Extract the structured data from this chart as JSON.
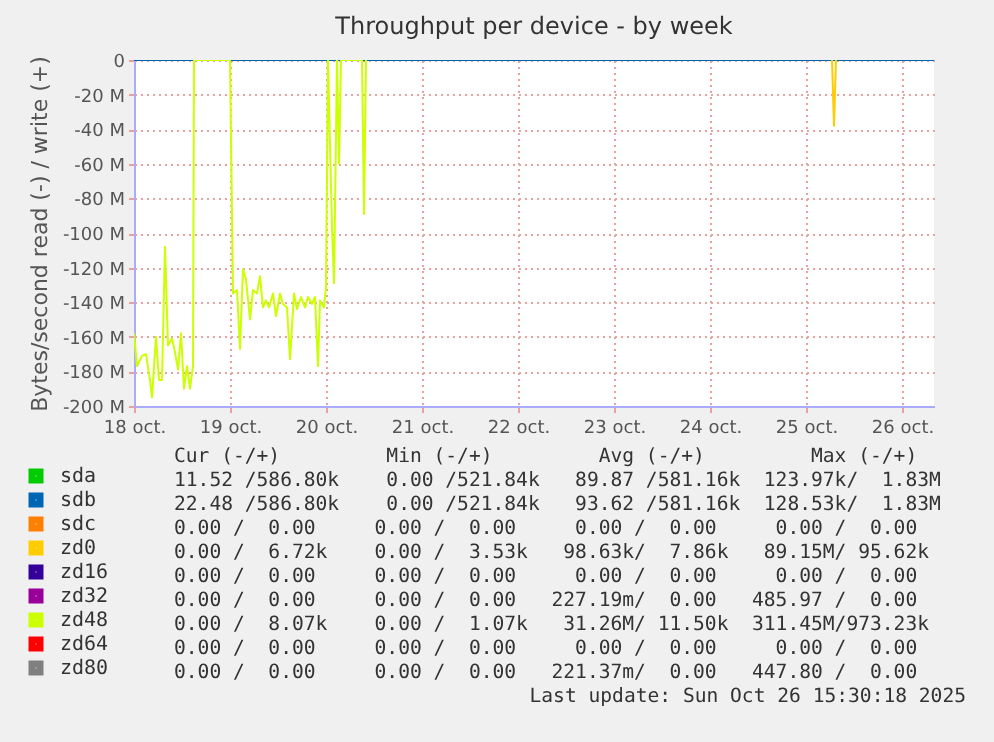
{
  "chart_data": {
    "type": "line",
    "title": "Throughput per device - by week",
    "ylabel": "Bytes/second read (-) / write (+)",
    "xlim": [
      "2025-10-18T00:00",
      "2025-10-26T08:00"
    ],
    "ylim": [
      -200,
      0
    ],
    "xticks": [
      {
        "value": "2025-10-18",
        "label": "18 oct."
      },
      {
        "value": "2025-10-19",
        "label": "19 oct."
      },
      {
        "value": "2025-10-20",
        "label": "20 oct."
      },
      {
        "value": "2025-10-21",
        "label": "21 oct."
      },
      {
        "value": "2025-10-22",
        "label": "22 oct."
      },
      {
        "value": "2025-10-23",
        "label": "23 oct."
      },
      {
        "value": "2025-10-24",
        "label": "24 oct."
      },
      {
        "value": "2025-10-25",
        "label": "25 oct."
      },
      {
        "value": "2025-10-26",
        "label": "26 oct."
      }
    ],
    "yticks": [
      0,
      {
        "value": -20,
        "label": "-20 M"
      },
      {
        "value": -40,
        "label": "-40 M"
      },
      {
        "value": -60,
        "label": "-60 M"
      },
      {
        "value": -80,
        "label": "-80 M"
      },
      {
        "value": -100,
        "label": "-100 M"
      },
      {
        "value": -120,
        "label": "-120 M"
      },
      {
        "value": -140,
        "label": "-140 M"
      },
      {
        "value": -160,
        "label": "-160 M"
      },
      {
        "value": -180,
        "label": "-180 M"
      },
      {
        "value": -200,
        "label": "-200 M"
      }
    ],
    "grid": true,
    "legend": "bottom",
    "marker": "none",
    "line_style": "solid",
    "series": [
      {
        "name": "sda",
        "color": "#00cc00"
      },
      {
        "name": "sdb",
        "color": "#0066b3",
        "x": [
          "2025-10-18T00:00",
          "2025-10-26T08:00"
        ],
        "values": [
          0,
          0
        ]
      },
      {
        "name": "sdc",
        "color": "#ff8000"
      },
      {
        "name": "zd0",
        "color": "#ffcc00",
        "x": [
          "2025-10-25T06:30",
          "2025-10-25T07:00",
          "2025-10-25T07:30"
        ],
        "values": [
          0,
          -38,
          0
        ]
      },
      {
        "name": "zd16",
        "color": "#330099"
      },
      {
        "name": "zd32",
        "color": "#990099"
      },
      {
        "name": "zd48",
        "color": "#ccff00",
        "x": [
          "2025-10-18T00:00",
          "2025-10-18T00:45",
          "2025-10-18T02:00",
          "2025-10-18T03:00",
          "2025-10-18T04:00",
          "2025-10-18T04:30",
          "2025-10-18T05:30",
          "2025-10-18T06:15",
          "2025-10-18T07:00",
          "2025-10-18T07:45",
          "2025-10-18T08:30",
          "2025-10-18T09:30",
          "2025-10-18T10:15",
          "2025-10-18T11:00",
          "2025-10-18T11:45",
          "2025-10-18T12:30",
          "2025-10-18T13:15",
          "2025-10-18T14:00",
          "2025-10-18T14:45",
          "2025-10-18T15:00",
          "2025-10-19T00:00",
          "2025-10-19T00:45",
          "2025-10-19T01:45",
          "2025-10-19T02:30",
          "2025-10-19T03:15",
          "2025-10-19T04:00",
          "2025-10-19T05:00",
          "2025-10-19T05:45",
          "2025-10-19T06:45",
          "2025-10-19T07:30",
          "2025-10-19T08:15",
          "2025-10-19T09:00",
          "2025-10-19T09:45",
          "2025-10-19T10:45",
          "2025-10-19T11:30",
          "2025-10-19T12:30",
          "2025-10-19T13:15",
          "2025-10-19T14:15",
          "2025-10-19T15:00",
          "2025-10-19T16:00",
          "2025-10-19T16:45",
          "2025-10-19T17:45",
          "2025-10-19T18:45",
          "2025-10-19T19:30",
          "2025-10-19T20:30",
          "2025-10-19T21:15",
          "2025-10-19T22:00",
          "2025-10-19T22:30",
          "2025-10-19T23:30",
          "2025-10-20T00:00",
          "2025-10-20T00:30",
          "2025-10-20T01:30",
          "2025-10-20T02:00",
          "2025-10-20T02:45",
          "2025-10-20T03:15",
          "2025-10-20T03:45",
          "2025-10-20T09:00",
          "2025-10-20T09:30",
          "2025-10-20T10:00"
        ],
        "values": [
          -158,
          -177,
          -171,
          -170,
          -185,
          -195,
          -160,
          -185,
          -185,
          -108,
          -165,
          -161,
          -169,
          -179,
          -158,
          -190,
          -177,
          -190,
          -177,
          0,
          0,
          -135,
          -133,
          -167,
          -121,
          -127,
          -150,
          -133,
          -135,
          -125,
          -143,
          -139,
          -143,
          -135,
          -148,
          -135,
          -141,
          -143,
          -173,
          -135,
          -144,
          -137,
          -143,
          -137,
          -141,
          -137,
          -177,
          -139,
          -143,
          -131,
          0,
          -97,
          -129,
          0,
          -60,
          0,
          0,
          -89,
          0
        ]
      },
      {
        "name": "zd64",
        "color": "#ff0000"
      },
      {
        "name": "zd80",
        "color": "#808080"
      }
    ],
    "annotations": [
      "   Cur (-/+)         Min (-/+)         Avg (-/+)         Max (-/+)",
      " 11.52 /586.80k    0.00 /521.84k   89.87 /581.16k  123.97k/  1.83M",
      " 22.48 /586.80k    0.00 /521.84k   93.62 /581.16k  128.53k/  1.83M",
      "  0.00 /  0.00     0.00 /  0.00     0.00 /  0.00     0.00 /  0.00",
      "  0.00 /  6.72k    0.00 /  3.53k   98.63k/  7.86k   89.15M/ 95.62k",
      "  0.00 /  0.00     0.00 /  0.00     0.00 /  0.00     0.00 /  0.00",
      "  0.00 /  0.00     0.00 /  0.00   227.19m/  0.00   485.97 /  0.00",
      "  0.00 /  8.07k    0.00 /  1.07k   31.26M/ 11.50k  311.45M/973.23k",
      "  0.00 /  0.00     0.00 /  0.00     0.00 /  0.00     0.00 /  0.00",
      "  0.00 /  0.00     0.00 /  0.00   221.37m/  0.00   447.80 /  0.00",
      "Last update: Sun Oct 26 15:30:18 2025"
    ]
  }
}
